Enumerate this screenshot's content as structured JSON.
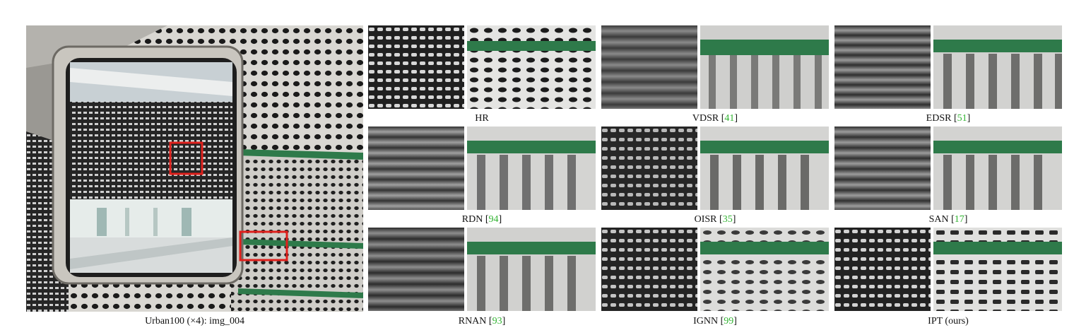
{
  "figure": {
    "main_caption": "Urban100 (×4): img_004",
    "methods": [
      {
        "name": "HR",
        "ref": ""
      },
      {
        "name": "VDSR",
        "ref": "41"
      },
      {
        "name": "EDSR",
        "ref": "51"
      },
      {
        "name": "RDN",
        "ref": "94"
      },
      {
        "name": "OISR",
        "ref": "35"
      },
      {
        "name": "SAN",
        "ref": "17"
      },
      {
        "name": "RNAN ",
        "ref": "93"
      },
      {
        "name": "IGNN",
        "ref": "99"
      },
      {
        "name": "IPT (ours)",
        "ref": ""
      }
    ]
  },
  "colors": {
    "highlight_box": "#e0201c",
    "green_bar": "#2e7a4a",
    "citation": "#32b432"
  }
}
